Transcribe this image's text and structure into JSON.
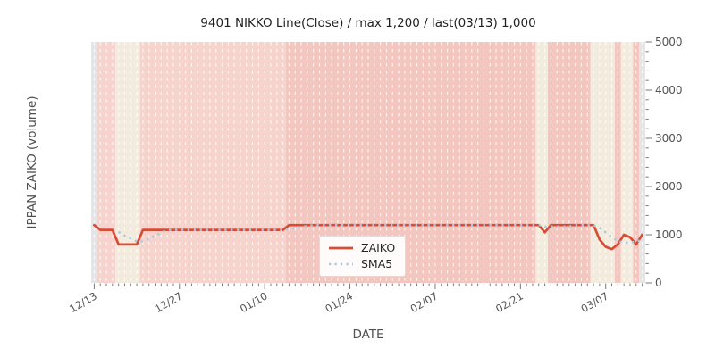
{
  "title": "9401 NIKKO Line(Close) / max 1,200 / last(03/13) 1,000",
  "chart_data": {
    "type": "line",
    "title": "9401 NIKKO Line(Close) / max 1,200 / last(03/13) 1,000",
    "xlabel": "DATE",
    "ylabel": "IPPAN ZAIKO (volume)",
    "ylim": [
      0,
      5000
    ],
    "y_ticks": [
      0,
      1000,
      2000,
      3000,
      4000,
      5000
    ],
    "y_minor_step": 200,
    "grid": "white-dashed-vertical-daily",
    "legend_position": "lower-center-inside",
    "x_tick_labels": [
      "12/13",
      "12/27",
      "01/10",
      "01/24",
      "02/07",
      "02/21",
      "03/07"
    ],
    "x_tick_days": [
      0,
      14,
      28,
      42,
      56,
      70,
      84
    ],
    "dates": [
      "12/13",
      "12/14",
      "12/15",
      "12/16",
      "12/17",
      "12/18",
      "12/19",
      "12/20",
      "12/21",
      "12/22",
      "12/23",
      "12/24",
      "12/25",
      "12/26",
      "12/27",
      "12/28",
      "12/29",
      "12/30",
      "12/31",
      "01/01",
      "01/02",
      "01/03",
      "01/04",
      "01/05",
      "01/06",
      "01/07",
      "01/08",
      "01/09",
      "01/10",
      "01/11",
      "01/12",
      "01/13",
      "01/14",
      "01/15",
      "01/16",
      "01/17",
      "01/18",
      "01/19",
      "01/20",
      "01/21",
      "01/22",
      "01/23",
      "01/24",
      "01/25",
      "01/26",
      "01/27",
      "01/28",
      "01/29",
      "01/30",
      "01/31",
      "02/01",
      "02/02",
      "02/03",
      "02/04",
      "02/05",
      "02/06",
      "02/07",
      "02/08",
      "02/09",
      "02/10",
      "02/11",
      "02/12",
      "02/13",
      "02/14",
      "02/15",
      "02/16",
      "02/17",
      "02/18",
      "02/19",
      "02/20",
      "02/21",
      "02/22",
      "02/23",
      "02/24",
      "02/25",
      "02/26",
      "02/27",
      "02/28",
      "03/01",
      "03/02",
      "03/03",
      "03/04",
      "03/05",
      "03/06",
      "03/07",
      "03/08",
      "03/09",
      "03/10",
      "03/11",
      "03/12",
      "03/13"
    ],
    "series": [
      {
        "name": "ZAIKO",
        "style": "solid",
        "color": "#d84b35",
        "values": [
          1200,
          1100,
          1100,
          1100,
          800,
          800,
          800,
          800,
          1100,
          1100,
          1100,
          1100,
          1100,
          1100,
          1100,
          1100,
          1100,
          1100,
          1100,
          1100,
          1100,
          1100,
          1100,
          1100,
          1100,
          1100,
          1100,
          1100,
          1100,
          1100,
          1100,
          1100,
          1200,
          1200,
          1200,
          1200,
          1200,
          1200,
          1200,
          1200,
          1200,
          1200,
          1200,
          1200,
          1200,
          1200,
          1200,
          1200,
          1200,
          1200,
          1200,
          1200,
          1200,
          1200,
          1200,
          1200,
          1200,
          1200,
          1200,
          1200,
          1200,
          1200,
          1200,
          1200,
          1200,
          1200,
          1200,
          1200,
          1200,
          1200,
          1200,
          1200,
          1200,
          1200,
          1050,
          1200,
          1200,
          1200,
          1200,
          1200,
          1200,
          1200,
          1200,
          900,
          750,
          700,
          800,
          1000,
          950,
          800,
          1000
        ]
      },
      {
        "name": "SMA5",
        "style": "dotted",
        "color": "#a9cade",
        "derived": "5-day moving average of ZAIKO"
      }
    ],
    "background_band_colors": {
      "gray": "#e5e5e5",
      "pink_light": "#f6d4cd",
      "pink_dark": "#f3c7bf",
      "cream": "#f4ebdf"
    },
    "background_bands": [
      {
        "from": 0,
        "to": 1,
        "color": "gray"
      },
      {
        "from": 1,
        "to": 4,
        "color": "pink_light"
      },
      {
        "from": 4,
        "to": 8,
        "color": "cream"
      },
      {
        "from": 8,
        "to": 32,
        "color": "pink_light"
      },
      {
        "from": 32,
        "to": 73,
        "color": "pink_dark"
      },
      {
        "from": 73,
        "to": 75,
        "color": "cream"
      },
      {
        "from": 75,
        "to": 82,
        "color": "pink_dark"
      },
      {
        "from": 82,
        "to": 86,
        "color": "cream"
      },
      {
        "from": 86,
        "to": 87,
        "color": "pink_dark"
      },
      {
        "from": 87,
        "to": 89,
        "color": "cream"
      },
      {
        "from": 89,
        "to": 90,
        "color": "pink_dark"
      },
      {
        "from": 90,
        "to": 91,
        "color": "gray"
      }
    ],
    "style_colors": {
      "tick": "#7a7a7a",
      "tick_label": "#545454",
      "gridline": "#ffffff"
    }
  }
}
